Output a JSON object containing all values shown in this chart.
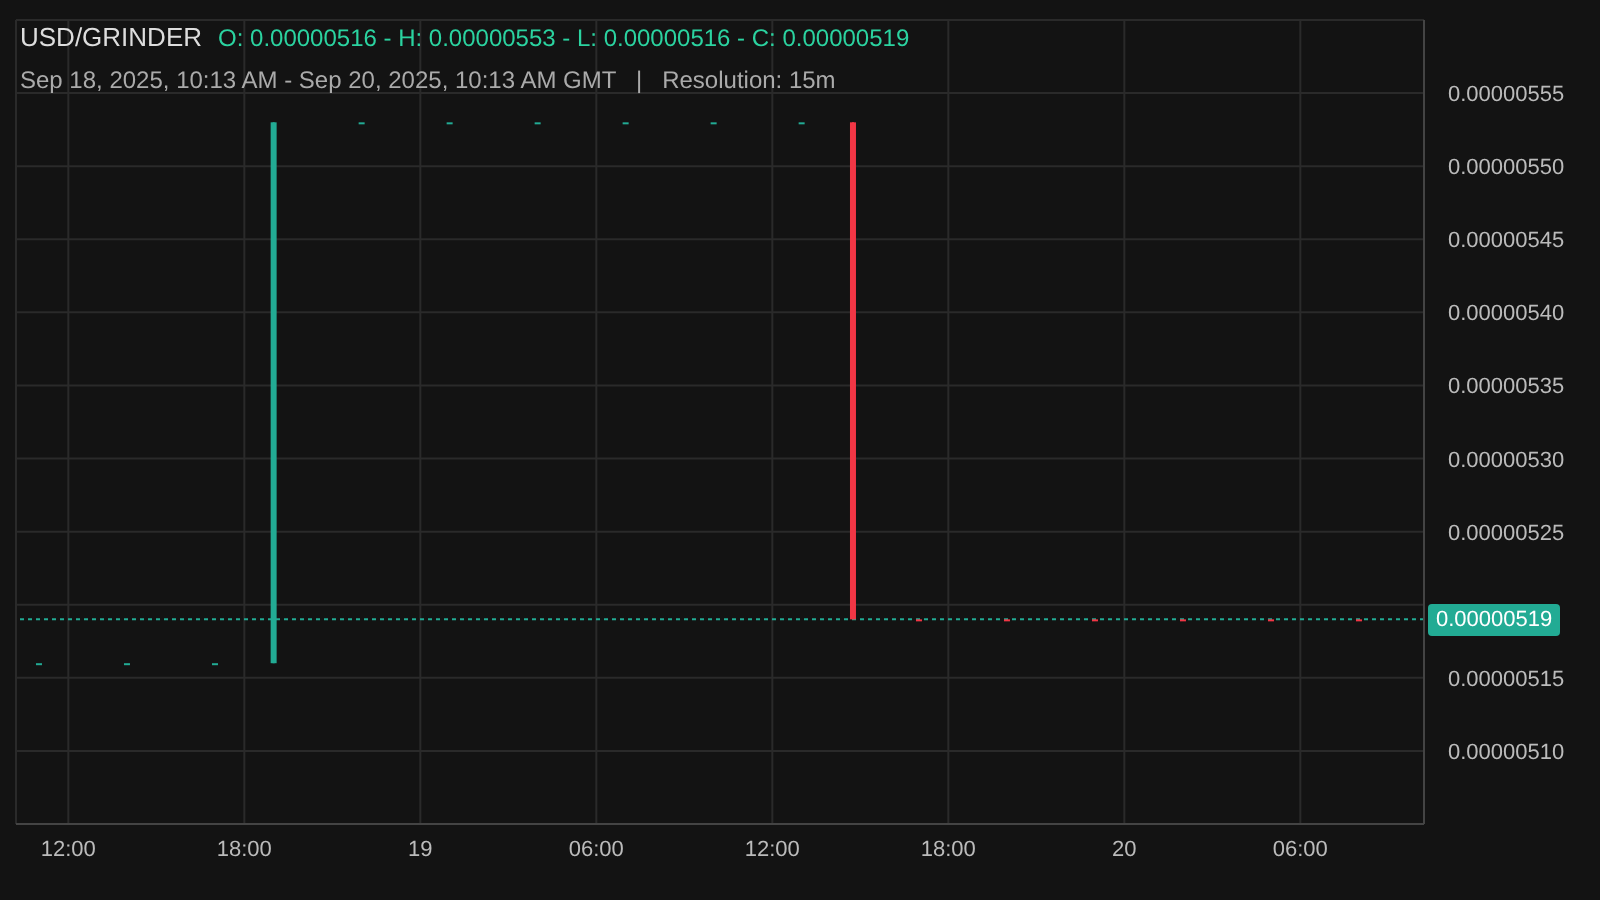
{
  "chart_data": {
    "type": "candlestick",
    "title": "USD/GRINDER",
    "subtitle": "O: 0.00000516 - H: 0.00000553 - L: 0.00000516 - C: 0.00000519",
    "annotations": [
      "Sep 18, 2025, 10:13 AM - Sep 20, 2025, 10:13 AM GMT   |   Resolution: 15m"
    ],
    "x": [
      "2025-09-18T11:00",
      "2025-09-18T14:00",
      "2025-09-18T17:00",
      "2025-09-18T19:00",
      "2025-09-18T22:00",
      "2025-09-19T01:00",
      "2025-09-19T04:00",
      "2025-09-19T07:00",
      "2025-09-19T10:00",
      "2025-09-19T13:00",
      "2025-09-19T14:45",
      "2025-09-19T17:00",
      "2025-09-19T20:00",
      "2025-09-19T23:00",
      "2025-09-20T02:00",
      "2025-09-20T05:00",
      "2025-09-20T08:00"
    ],
    "ohlc": [
      [
        5.16e-06,
        5.16e-06,
        5.16e-06,
        5.16e-06
      ],
      [
        5.16e-06,
        5.16e-06,
        5.16e-06,
        5.16e-06
      ],
      [
        5.16e-06,
        5.16e-06,
        5.16e-06,
        5.16e-06
      ],
      [
        5.16e-06,
        5.53e-06,
        5.16e-06,
        5.53e-06
      ],
      [
        5.53e-06,
        5.53e-06,
        5.53e-06,
        5.53e-06
      ],
      [
        5.53e-06,
        5.53e-06,
        5.53e-06,
        5.53e-06
      ],
      [
        5.53e-06,
        5.53e-06,
        5.53e-06,
        5.53e-06
      ],
      [
        5.53e-06,
        5.53e-06,
        5.53e-06,
        5.53e-06
      ],
      [
        5.53e-06,
        5.53e-06,
        5.53e-06,
        5.53e-06
      ],
      [
        5.53e-06,
        5.53e-06,
        5.53e-06,
        5.53e-06
      ],
      [
        5.53e-06,
        5.53e-06,
        5.19e-06,
        5.19e-06
      ],
      [
        5.19e-06,
        5.19e-06,
        5.19e-06,
        5.19e-06
      ],
      [
        5.19e-06,
        5.19e-06,
        5.19e-06,
        5.19e-06
      ],
      [
        5.19e-06,
        5.19e-06,
        5.19e-06,
        5.19e-06
      ],
      [
        5.19e-06,
        5.19e-06,
        5.19e-06,
        5.19e-06
      ],
      [
        5.19e-06,
        5.19e-06,
        5.19e-06,
        5.19e-06
      ],
      [
        5.19e-06,
        5.19e-06,
        5.19e-06,
        5.19e-06
      ]
    ],
    "colors": [
      "#22ab94",
      "#22ab94",
      "#22ab94",
      "#22ab94",
      "#22ab94",
      "#22ab94",
      "#22ab94",
      "#22ab94",
      "#22ab94",
      "#22ab94",
      "#f23645",
      "#f23645",
      "#f23645",
      "#f23645",
      "#f23645",
      "#f23645",
      "#f23645"
    ],
    "xlim": [
      "2025-09-18T10:13",
      "2025-09-20T10:13"
    ],
    "xticks": [
      {
        "value": "2025-09-18T12:00",
        "label": "12:00"
      },
      {
        "value": "2025-09-18T18:00",
        "label": "18:00"
      },
      {
        "value": "2025-09-19T00:00",
        "label": "19"
      },
      {
        "value": "2025-09-19T06:00",
        "label": "06:00"
      },
      {
        "value": "2025-09-19T12:00",
        "label": "12:00"
      },
      {
        "value": "2025-09-19T18:00",
        "label": "18:00"
      },
      {
        "value": "2025-09-20T00:00",
        "label": "20"
      },
      {
        "value": "2025-09-20T06:00",
        "label": "06:00"
      }
    ],
    "ylim": [
      5.05e-06,
      5.6e-06
    ],
    "yticks": [
      {
        "value": 5.1e-06,
        "label": "0.00000510"
      },
      {
        "value": 5.15e-06,
        "label": "0.00000515"
      },
      {
        "value": 5.2e-06,
        "label": null
      },
      {
        "value": 5.25e-06,
        "label": "0.00000525"
      },
      {
        "value": 5.3e-06,
        "label": "0.00000530"
      },
      {
        "value": 5.35e-06,
        "label": "0.00000535"
      },
      {
        "value": 5.4e-06,
        "label": "0.00000540"
      },
      {
        "value": 5.45e-06,
        "label": "0.00000545"
      },
      {
        "value": 5.5e-06,
        "label": "0.00000550"
      },
      {
        "value": 5.55e-06,
        "label": "0.00000555"
      }
    ],
    "ref_lines": [
      {
        "axis": "y",
        "value": 5.19e-06,
        "label": "0.00000519",
        "color": "#22ab94",
        "line_style": "dotted"
      }
    ],
    "grid": true
  }
}
